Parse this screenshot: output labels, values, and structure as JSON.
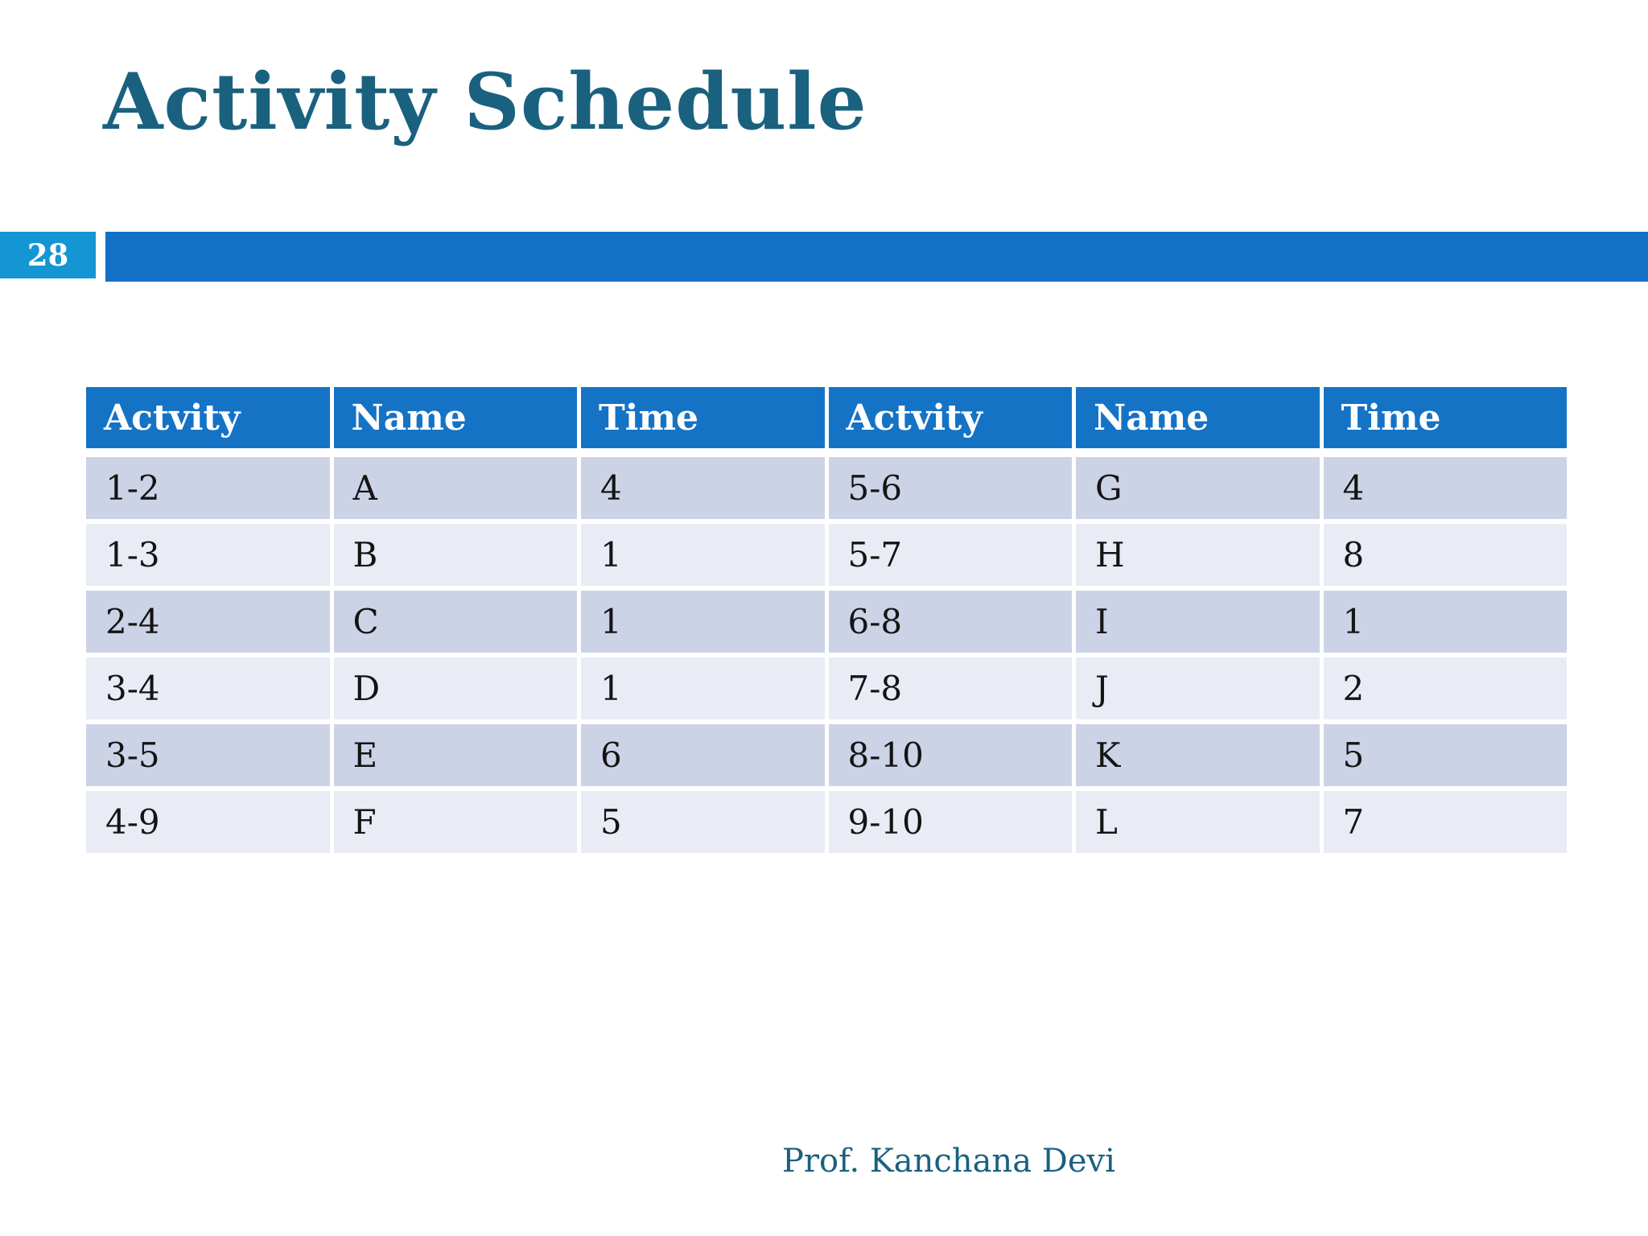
{
  "slide": {
    "title": "Activity Schedule",
    "page_number": "28",
    "footer_credit": "Prof. Kanchana Devi"
  },
  "colors": {
    "title_text": "#1a617f",
    "accent_bar": "#1271c7",
    "page_badge": "#1496d4",
    "table_header_bg": "#1573c6",
    "table_header_text": "#ffffff",
    "row_dark": "#cdd3e6",
    "row_light": "#e9ecf5",
    "cell_text": "#141414"
  },
  "table": {
    "columns": [
      "Actvity",
      "Name",
      "Time",
      "Actvity",
      "Name",
      "Time"
    ],
    "rows": [
      [
        "1-2",
        "A",
        "4",
        "5-6",
        "G",
        "4"
      ],
      [
        "1-3",
        "B",
        "1",
        "5-7",
        "H",
        "8"
      ],
      [
        "2-4",
        "C",
        "1",
        "6-8",
        "I",
        "1"
      ],
      [
        "3-4",
        "D",
        "1",
        "7-8",
        "J",
        "2"
      ],
      [
        "3-5",
        "E",
        "6",
        "8-10",
        "K",
        "5"
      ],
      [
        "4-9",
        "F",
        "5",
        "9-10",
        "L",
        "7"
      ]
    ]
  }
}
